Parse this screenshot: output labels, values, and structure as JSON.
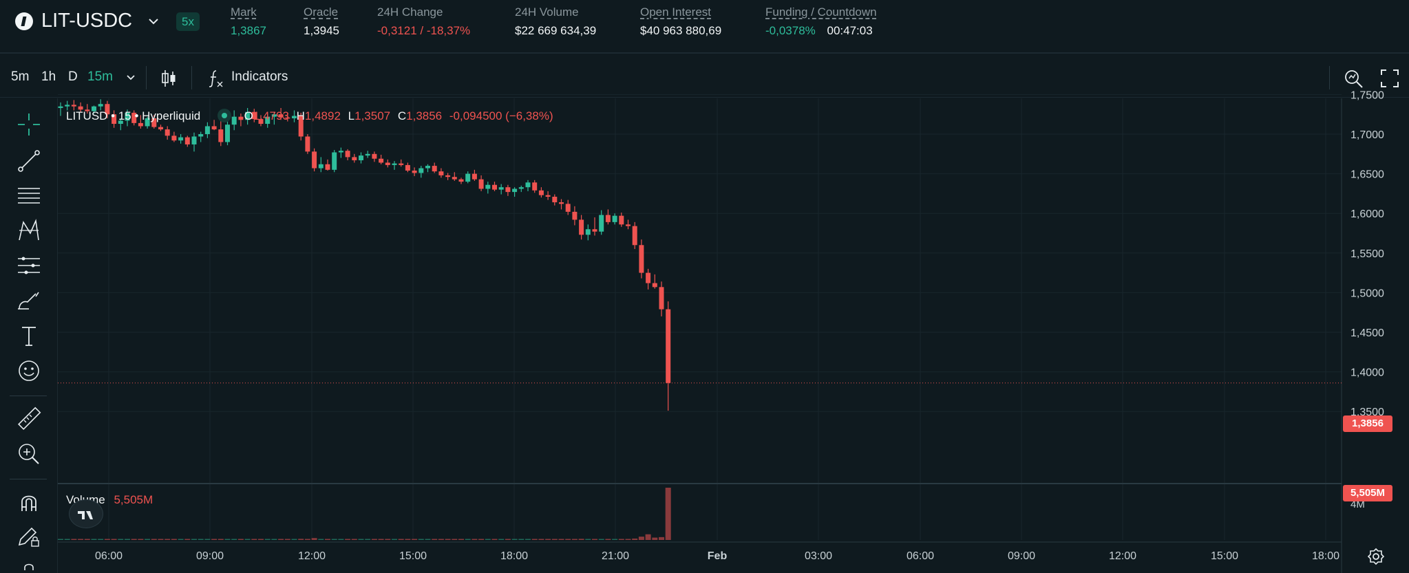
{
  "header": {
    "pair": "LIT-USDC",
    "leverage": "5x",
    "stats": [
      {
        "label": "Mark",
        "value": "1,3867",
        "underline": true,
        "color": "green"
      },
      {
        "label": "Oracle",
        "value": "1,3945",
        "underline": true,
        "color": "white"
      },
      {
        "label": "24H Change",
        "value": "-0,3121 / -18,37%",
        "underline": false,
        "color": "red"
      },
      {
        "label": "24H Volume",
        "value": "$22 669 634,39",
        "underline": false,
        "color": "white"
      },
      {
        "label": "Open Interest",
        "value": "$40 963 880,69",
        "underline": true,
        "color": "white"
      },
      {
        "label": "Funding / Countdown",
        "value": "-0,0378%",
        "value2": "00:47:03",
        "underline": true,
        "color": "green"
      }
    ]
  },
  "toolbar": {
    "timeframes": [
      "5m",
      "1h",
      "D",
      "15m"
    ],
    "active_timeframe": "15m",
    "indicators_label": "Indicators"
  },
  "legend": {
    "symbol": "LITUSD • 15 • Hyperliquid",
    "o_label": "O",
    "o": "1,4793",
    "h_label": "H",
    "h": "1,4892",
    "l_label": "L",
    "l": "1,3507",
    "c_label": "C",
    "c": "1,3856",
    "change": "-0,094500 (−6,38%)",
    "volume_label": "Volume",
    "volume_value": "5,505M"
  },
  "price_tags": {
    "last_price": "1,3856",
    "last_volume": "5,505M"
  },
  "tools": [
    "crosshair-icon",
    "trendline-icon",
    "fib-icon",
    "pattern-icon",
    "forecast-icon",
    "brush-icon",
    "text-icon",
    "emoji-icon",
    "ruler-icon",
    "zoom-icon",
    "magnet-icon",
    "lock-draw-icon"
  ],
  "colors": {
    "up": "#2ebd9b",
    "down": "#ef5350",
    "bg": "#0f1a1f",
    "grid": "#18262c"
  },
  "chart_data": {
    "type": "candlestick",
    "x_tick_labels": [
      "06:00",
      "09:00",
      "12:00",
      "15:00",
      "18:00",
      "21:00",
      "Feb",
      "03:00",
      "06:00",
      "09:00",
      "12:00",
      "15:00",
      "18:00"
    ],
    "y_tick_labels": [
      "1,7500",
      "1,7000",
      "1,6500",
      "1,6000",
      "1,5500",
      "1,5000",
      "1,4500",
      "1,4000",
      "1,3500"
    ],
    "y_ticks": [
      1.75,
      1.7,
      1.65,
      1.6,
      1.55,
      1.5,
      1.45,
      1.4,
      1.35
    ],
    "volume_tick_label": "4M",
    "ohlc": [
      [
        1.733,
        1.74,
        1.723,
        1.735
      ],
      [
        1.735,
        1.742,
        1.73,
        1.737
      ],
      [
        1.737,
        1.743,
        1.73,
        1.735
      ],
      [
        1.735,
        1.74,
        1.728,
        1.731
      ],
      [
        1.731,
        1.738,
        1.726,
        1.729
      ],
      [
        1.729,
        1.736,
        1.726,
        1.735
      ],
      [
        1.735,
        1.744,
        1.73,
        1.738
      ],
      [
        1.738,
        1.742,
        1.72,
        1.725
      ],
      [
        1.725,
        1.73,
        1.708,
        1.713
      ],
      [
        1.713,
        1.72,
        1.705,
        1.717
      ],
      [
        1.717,
        1.731,
        1.71,
        1.727
      ],
      [
        1.727,
        1.73,
        1.711,
        1.714
      ],
      [
        1.714,
        1.724,
        1.707,
        1.71
      ],
      [
        1.71,
        1.722,
        1.707,
        1.72
      ],
      [
        1.72,
        1.724,
        1.707,
        1.709
      ],
      [
        1.709,
        1.712,
        1.704,
        1.706
      ],
      [
        1.706,
        1.71,
        1.693,
        1.698
      ],
      [
        1.698,
        1.703,
        1.69,
        1.692
      ],
      [
        1.692,
        1.7,
        1.688,
        1.696
      ],
      [
        1.696,
        1.698,
        1.684,
        1.687
      ],
      [
        1.687,
        1.702,
        1.678,
        1.697
      ],
      [
        1.697,
        1.703,
        1.69,
        1.7
      ],
      [
        1.7,
        1.715,
        1.695,
        1.71
      ],
      [
        1.71,
        1.718,
        1.705,
        1.706
      ],
      [
        1.706,
        1.72,
        1.685,
        1.69
      ],
      [
        1.69,
        1.716,
        1.686,
        1.712
      ],
      [
        1.712,
        1.73,
        1.705,
        1.722
      ],
      [
        1.722,
        1.726,
        1.71,
        1.718
      ],
      [
        1.718,
        1.733,
        1.712,
        1.728
      ],
      [
        1.728,
        1.732,
        1.715,
        1.719
      ],
      [
        1.719,
        1.724,
        1.71,
        1.713
      ],
      [
        1.713,
        1.725,
        1.708,
        1.722
      ],
      [
        1.722,
        1.728,
        1.712,
        1.725
      ],
      [
        1.725,
        1.733,
        1.718,
        1.721
      ],
      [
        1.721,
        1.726,
        1.716,
        1.72
      ],
      [
        1.72,
        1.73,
        1.715,
        1.723
      ],
      [
        1.723,
        1.727,
        1.692,
        1.697
      ],
      [
        1.697,
        1.7,
        1.675,
        1.678
      ],
      [
        1.678,
        1.682,
        1.653,
        1.657
      ],
      [
        1.657,
        1.671,
        1.652,
        1.662
      ],
      [
        1.662,
        1.668,
        1.654,
        1.655
      ],
      [
        1.655,
        1.68,
        1.652,
        1.677
      ],
      [
        1.677,
        1.683,
        1.67,
        1.679
      ],
      [
        1.679,
        1.681,
        1.667,
        1.671
      ],
      [
        1.671,
        1.675,
        1.664,
        1.667
      ],
      [
        1.667,
        1.677,
        1.663,
        1.673
      ],
      [
        1.673,
        1.679,
        1.67,
        1.675
      ],
      [
        1.675,
        1.678,
        1.665,
        1.669
      ],
      [
        1.669,
        1.674,
        1.662,
        1.664
      ],
      [
        1.664,
        1.668,
        1.658,
        1.661
      ],
      [
        1.661,
        1.666,
        1.655,
        1.663
      ],
      [
        1.663,
        1.668,
        1.659,
        1.661
      ],
      [
        1.661,
        1.664,
        1.652,
        1.654
      ],
      [
        1.654,
        1.658,
        1.647,
        1.651
      ],
      [
        1.651,
        1.66,
        1.645,
        1.657
      ],
      [
        1.657,
        1.662,
        1.652,
        1.66
      ],
      [
        1.66,
        1.664,
        1.651,
        1.653
      ],
      [
        1.653,
        1.657,
        1.645,
        1.648
      ],
      [
        1.648,
        1.651,
        1.642,
        1.646
      ],
      [
        1.646,
        1.652,
        1.641,
        1.643
      ],
      [
        1.643,
        1.645,
        1.637,
        1.64
      ],
      [
        1.64,
        1.653,
        1.638,
        1.65
      ],
      [
        1.65,
        1.655,
        1.641,
        1.643
      ],
      [
        1.643,
        1.648,
        1.628,
        1.631
      ],
      [
        1.631,
        1.64,
        1.625,
        1.636
      ],
      [
        1.636,
        1.64,
        1.628,
        1.63
      ],
      [
        1.63,
        1.637,
        1.624,
        1.633
      ],
      [
        1.633,
        1.636,
        1.622,
        1.627
      ],
      [
        1.627,
        1.633,
        1.621,
        1.631
      ],
      [
        1.631,
        1.635,
        1.627,
        1.633
      ],
      [
        1.633,
        1.642,
        1.628,
        1.639
      ],
      [
        1.639,
        1.642,
        1.626,
        1.629
      ],
      [
        1.629,
        1.633,
        1.62,
        1.623
      ],
      [
        1.623,
        1.628,
        1.617,
        1.621
      ],
      [
        1.621,
        1.624,
        1.61,
        1.614
      ],
      [
        1.614,
        1.618,
        1.605,
        1.612
      ],
      [
        1.612,
        1.617,
        1.598,
        1.602
      ],
      [
        1.602,
        1.609,
        1.585,
        1.592
      ],
      [
        1.592,
        1.598,
        1.567,
        1.573
      ],
      [
        1.573,
        1.586,
        1.566,
        1.58
      ],
      [
        1.58,
        1.595,
        1.572,
        1.577
      ],
      [
        1.577,
        1.604,
        1.573,
        1.598
      ],
      [
        1.598,
        1.605,
        1.586,
        1.589
      ],
      [
        1.589,
        1.6,
        1.586,
        1.597
      ],
      [
        1.597,
        1.601,
        1.583,
        1.586
      ],
      [
        1.586,
        1.592,
        1.58,
        1.584
      ],
      [
        1.584,
        1.589,
        1.555,
        1.56
      ],
      [
        1.56,
        1.567,
        1.518,
        1.525
      ],
      [
        1.525,
        1.53,
        1.504,
        1.512
      ],
      [
        1.512,
        1.523,
        1.505,
        1.507
      ],
      [
        1.507,
        1.514,
        1.47,
        1.479
      ],
      [
        1.479,
        1.489,
        1.351,
        1.386
      ]
    ],
    "volume_millions": [
      0.02,
      0.02,
      0.03,
      0.02,
      0.02,
      0.02,
      0.02,
      0.03,
      0.04,
      0.03,
      0.02,
      0.03,
      0.03,
      0.02,
      0.03,
      0.02,
      0.03,
      0.03,
      0.02,
      0.02,
      0.03,
      0.02,
      0.05,
      0.03,
      0.06,
      0.04,
      0.03,
      0.02,
      0.02,
      0.03,
      0.02,
      0.02,
      0.03,
      0.02,
      0.02,
      0.02,
      0.12,
      0.1,
      0.2,
      0.09,
      0.06,
      0.05,
      0.03,
      0.03,
      0.03,
      0.02,
      0.02,
      0.02,
      0.03,
      0.02,
      0.02,
      0.02,
      0.03,
      0.03,
      0.03,
      0.02,
      0.02,
      0.02,
      0.03,
      0.02,
      0.02,
      0.02,
      0.03,
      0.04,
      0.03,
      0.03,
      0.02,
      0.03,
      0.02,
      0.02,
      0.02,
      0.03,
      0.03,
      0.02,
      0.03,
      0.03,
      0.05,
      0.07,
      0.12,
      0.06,
      0.04,
      0.05,
      0.05,
      0.04,
      0.04,
      0.06,
      0.15,
      0.35,
      0.6,
      0.25,
      0.3,
      5.505
    ]
  }
}
